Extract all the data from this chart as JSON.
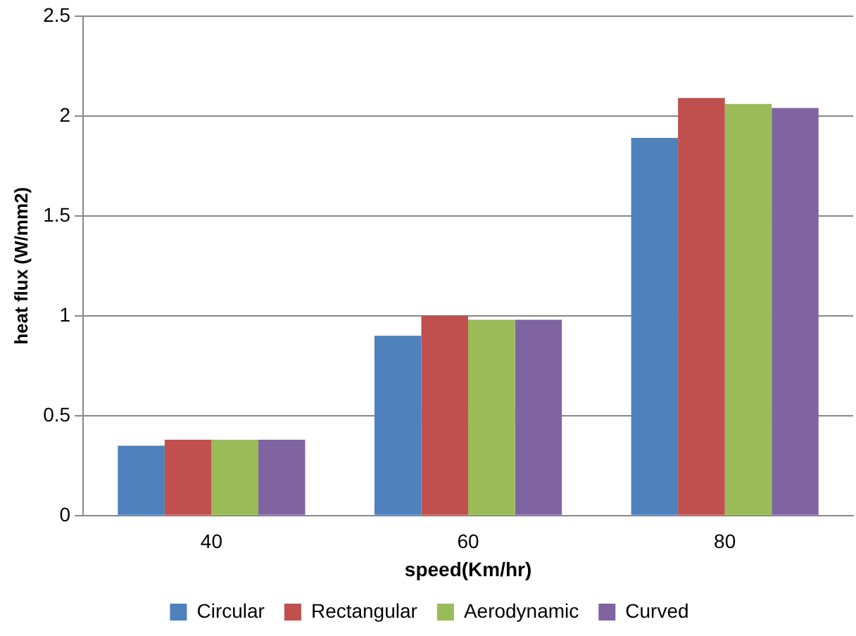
{
  "chart_data": {
    "type": "bar",
    "xlabel": "speed(Km/hr)",
    "ylabel": "heat flux (W/mm2)",
    "categories": [
      "40",
      "60",
      "80"
    ],
    "series": [
      {
        "name": "Circular",
        "color": "#4f81bd",
        "values": [
          0.35,
          0.9,
          1.89
        ]
      },
      {
        "name": "Rectangular",
        "color": "#c0504d",
        "values": [
          0.38,
          1.0,
          2.09
        ]
      },
      {
        "name": "Aerodynamic",
        "color": "#9bbb59",
        "values": [
          0.38,
          0.98,
          2.06
        ]
      },
      {
        "name": "Curved",
        "color": "#8064a2",
        "values": [
          0.38,
          0.98,
          2.04
        ]
      }
    ],
    "ylim": [
      0,
      2.5
    ],
    "yticks": [
      0,
      0.5,
      1,
      1.5,
      2,
      2.5
    ],
    "grid": "y",
    "legend": "bottom"
  }
}
